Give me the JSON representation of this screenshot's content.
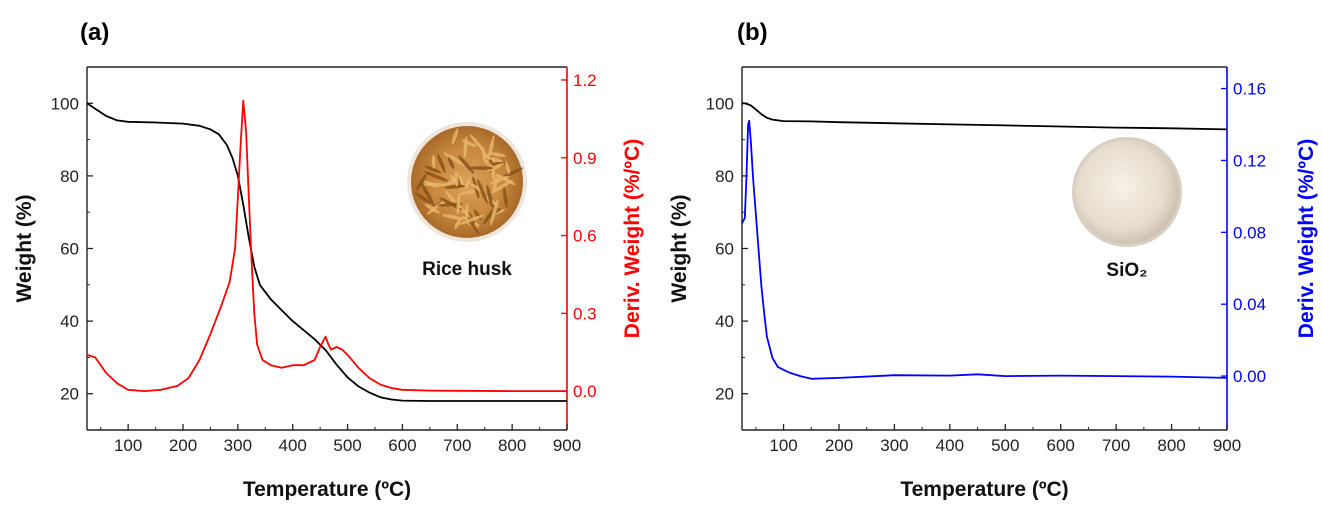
{
  "chart_data": [
    {
      "panel_label": "(a)",
      "type": "line",
      "xlabel": "Temperature (ºC)",
      "ylabel": "Weight (%)",
      "y2label": "Deriv. Weight (%/ºC)",
      "xlim": [
        25,
        900
      ],
      "ylim": [
        10,
        110
      ],
      "y2lim": [
        -0.15,
        1.25
      ],
      "xticks": [
        100,
        200,
        300,
        400,
        500,
        600,
        700,
        800,
        900
      ],
      "yticks": [
        20,
        40,
        60,
        80,
        100
      ],
      "y2ticks": [
        0.0,
        0.3,
        0.6,
        0.9,
        1.2
      ],
      "y2tick_labels": [
        "0.0",
        "0.3",
        "0.6",
        "0.9",
        "1.2"
      ],
      "inset_label": "Rice husk",
      "series": [
        {
          "axis": "left",
          "color": "#000000",
          "points": [
            [
              25,
              100
            ],
            [
              40,
              98.5
            ],
            [
              60,
              96.5
            ],
            [
              80,
              95.3
            ],
            [
              100,
              94.9
            ],
            [
              150,
              94.7
            ],
            [
              200,
              94.4
            ],
            [
              230,
              93.8
            ],
            [
              250,
              92.8
            ],
            [
              265,
              91.5
            ],
            [
              280,
              88.5
            ],
            [
              290,
              85
            ],
            [
              300,
              80
            ],
            [
              310,
              72
            ],
            [
              320,
              63
            ],
            [
              330,
              55
            ],
            [
              340,
              50
            ],
            [
              360,
              46
            ],
            [
              380,
              43
            ],
            [
              400,
              40
            ],
            [
              420,
              37.5
            ],
            [
              440,
              35
            ],
            [
              460,
              32
            ],
            [
              480,
              28
            ],
            [
              500,
              24.5
            ],
            [
              520,
              22
            ],
            [
              540,
              20.3
            ],
            [
              560,
              19
            ],
            [
              580,
              18.4
            ],
            [
              600,
              18.1
            ],
            [
              650,
              18
            ],
            [
              700,
              18
            ],
            [
              800,
              18
            ],
            [
              900,
              18
            ]
          ]
        },
        {
          "axis": "right",
          "color": "#ff0000",
          "points": [
            [
              25,
              0.14
            ],
            [
              40,
              0.13
            ],
            [
              60,
              0.07
            ],
            [
              80,
              0.03
            ],
            [
              100,
              0.005
            ],
            [
              130,
              0.0
            ],
            [
              160,
              0.005
            ],
            [
              190,
              0.02
            ],
            [
              210,
              0.05
            ],
            [
              230,
              0.12
            ],
            [
              250,
              0.22
            ],
            [
              270,
              0.33
            ],
            [
              285,
              0.42
            ],
            [
              295,
              0.55
            ],
            [
              300,
              0.75
            ],
            [
              305,
              0.95
            ],
            [
              310,
              1.12
            ],
            [
              315,
              1.0
            ],
            [
              320,
              0.75
            ],
            [
              325,
              0.5
            ],
            [
              330,
              0.3
            ],
            [
              335,
              0.18
            ],
            [
              345,
              0.12
            ],
            [
              360,
              0.1
            ],
            [
              380,
              0.09
            ],
            [
              400,
              0.1
            ],
            [
              420,
              0.1
            ],
            [
              440,
              0.12
            ],
            [
              450,
              0.17
            ],
            [
              460,
              0.21
            ],
            [
              465,
              0.18
            ],
            [
              470,
              0.16
            ],
            [
              480,
              0.17
            ],
            [
              490,
              0.16
            ],
            [
              500,
              0.14
            ],
            [
              520,
              0.09
            ],
            [
              540,
              0.05
            ],
            [
              560,
              0.025
            ],
            [
              580,
              0.012
            ],
            [
              600,
              0.005
            ],
            [
              650,
              0.002
            ],
            [
              700,
              0.001
            ],
            [
              800,
              0.0
            ],
            [
              900,
              0.0
            ]
          ]
        }
      ]
    },
    {
      "panel_label": "(b)",
      "type": "line",
      "xlabel": "Temperature (ºC)",
      "ylabel": "Weight (%)",
      "y2label": "Deriv. Weight (%/ºC)",
      "xlim": [
        25,
        900
      ],
      "ylim": [
        10,
        110
      ],
      "y2lim": [
        -0.03,
        0.172
      ],
      "xticks": [
        100,
        200,
        300,
        400,
        500,
        600,
        700,
        800,
        900
      ],
      "yticks": [
        20,
        40,
        60,
        80,
        100
      ],
      "y2ticks": [
        0.0,
        0.04,
        0.08,
        0.12,
        0.16
      ],
      "y2tick_labels": [
        "0.00",
        "0.04",
        "0.08",
        "0.12",
        "0.16"
      ],
      "inset_label": "SiO₂",
      "series": [
        {
          "axis": "left",
          "color": "#000000",
          "points": [
            [
              25,
              100
            ],
            [
              30,
              100
            ],
            [
              40,
              99.5
            ],
            [
              50,
              98.3
            ],
            [
              60,
              97
            ],
            [
              70,
              96
            ],
            [
              80,
              95.5
            ],
            [
              100,
              95.1
            ],
            [
              150,
              95
            ],
            [
              200,
              94.8
            ],
            [
              300,
              94.5
            ],
            [
              400,
              94.2
            ],
            [
              500,
              93.9
            ],
            [
              600,
              93.6
            ],
            [
              700,
              93.3
            ],
            [
              800,
              93.1
            ],
            [
              900,
              92.8
            ]
          ]
        },
        {
          "axis": "right",
          "color": "#0000ff",
          "points": [
            [
              25,
              0.085
            ],
            [
              30,
              0.088
            ],
            [
              33,
              0.11
            ],
            [
              36,
              0.14
            ],
            [
              38,
              0.142
            ],
            [
              41,
              0.13
            ],
            [
              45,
              0.11
            ],
            [
              50,
              0.09
            ],
            [
              55,
              0.07
            ],
            [
              60,
              0.05
            ],
            [
              65,
              0.035
            ],
            [
              70,
              0.022
            ],
            [
              80,
              0.01
            ],
            [
              90,
              0.005
            ],
            [
              110,
              0.002
            ],
            [
              130,
              0.0
            ],
            [
              150,
              -0.0015
            ],
            [
              200,
              -0.001
            ],
            [
              300,
              0.0005
            ],
            [
              400,
              0.0003
            ],
            [
              450,
              0.001
            ],
            [
              500,
              0.0
            ],
            [
              600,
              0.0003
            ],
            [
              700,
              0.0
            ],
            [
              800,
              -0.0003
            ],
            [
              900,
              -0.001
            ]
          ]
        }
      ]
    }
  ]
}
